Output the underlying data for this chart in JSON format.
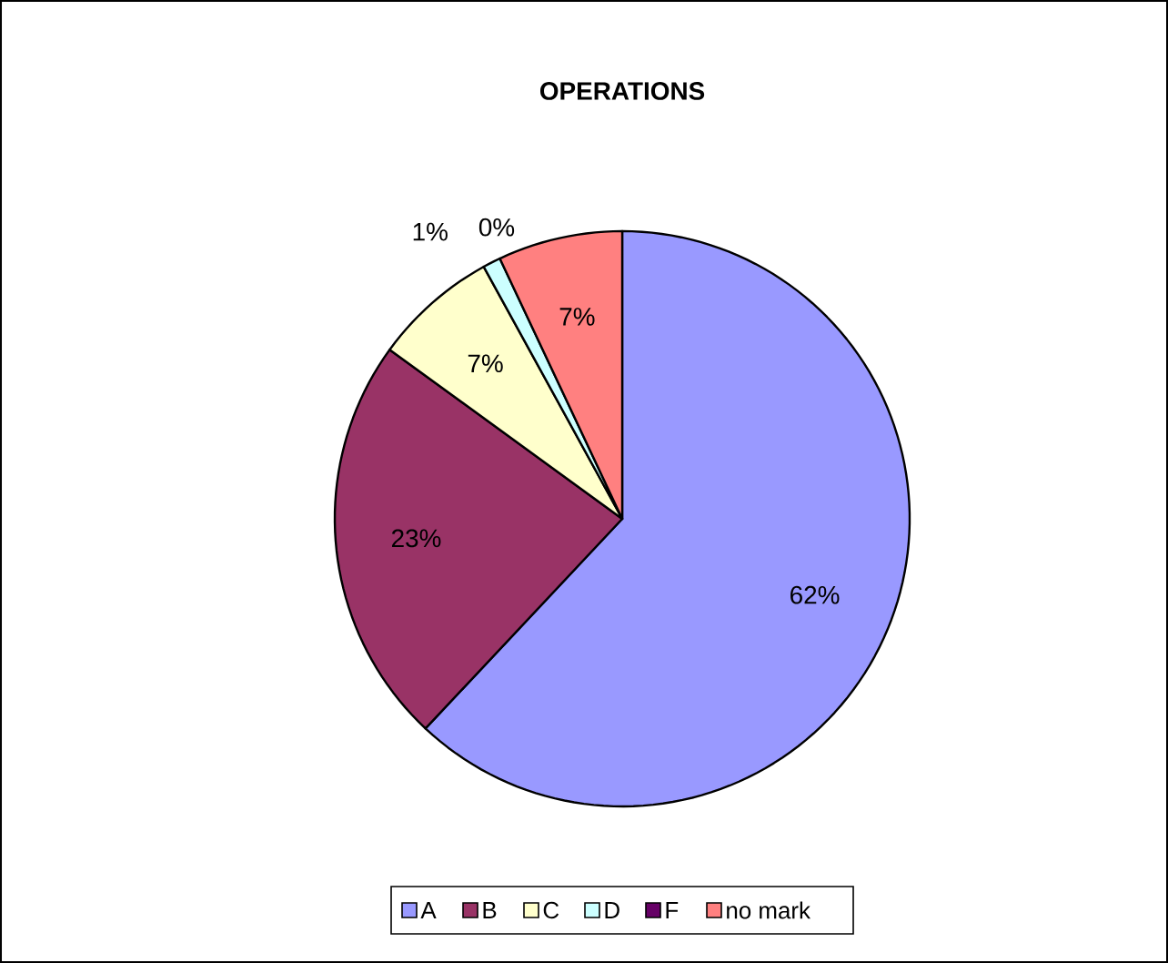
{
  "chart_data": {
    "type": "pie",
    "title": "OPERATIONS",
    "categories": [
      "A",
      "B",
      "C",
      "D",
      "F",
      "no mark"
    ],
    "values": [
      62,
      23,
      7,
      1,
      0,
      7
    ],
    "value_labels": [
      "62%",
      "23%",
      "7%",
      "1%",
      "0%",
      "7%"
    ],
    "colors": [
      "#9999ff",
      "#993366",
      "#ffffcc",
      "#ccffff",
      "#660066",
      "#ff8080"
    ],
    "legend": "bottom"
  }
}
